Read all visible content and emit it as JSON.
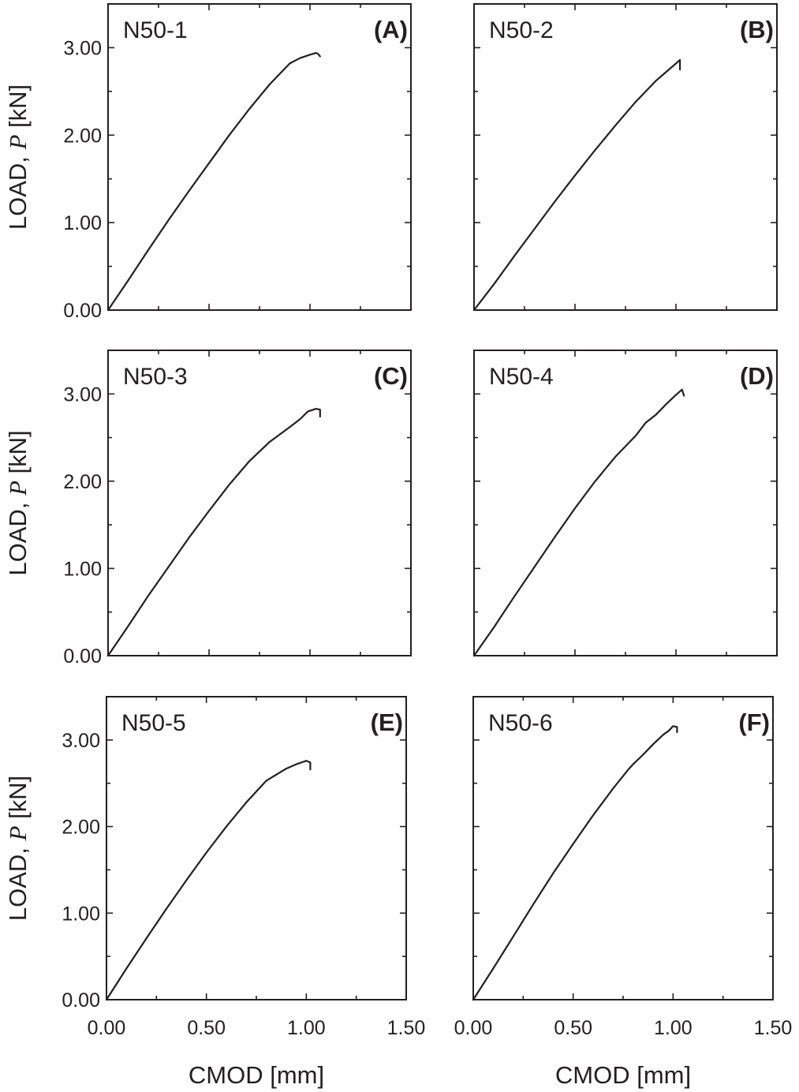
{
  "chart_data": [
    {
      "type": "line",
      "panel_name": "N50-1",
      "panel_letter": "(A)",
      "xlabel": "",
      "ylabel_parts": [
        "LOAD, ",
        "P",
        " [kN]"
      ],
      "xlim": [
        0,
        1.5
      ],
      "ylim": [
        0,
        3.5
      ],
      "yticks": [
        "0.00",
        "1.00",
        "2.00",
        "3.00"
      ],
      "xticks": [],
      "series": [
        {
          "x": [
            0,
            0.1,
            0.2,
            0.3,
            0.4,
            0.5,
            0.6,
            0.7,
            0.8,
            0.9,
            0.95,
            1.0,
            1.03,
            1.04,
            1.05
          ],
          "y": [
            0,
            0.34,
            0.69,
            1.03,
            1.36,
            1.68,
            2.0,
            2.3,
            2.58,
            2.82,
            2.88,
            2.92,
            2.94,
            2.93,
            2.9
          ]
        }
      ]
    },
    {
      "type": "line",
      "panel_name": "N50-2",
      "panel_letter": "(B)",
      "xlabel": "",
      "ylabel_parts": [],
      "xlim": [
        0,
        1.5
      ],
      "ylim": [
        0,
        3.5
      ],
      "yticks": [],
      "xticks": [],
      "series": [
        {
          "x": [
            0,
            0.1,
            0.2,
            0.3,
            0.4,
            0.5,
            0.6,
            0.7,
            0.8,
            0.9,
            0.95,
            1.0,
            1.02,
            1.02
          ],
          "y": [
            0,
            0.3,
            0.62,
            0.93,
            1.24,
            1.54,
            1.83,
            2.11,
            2.38,
            2.62,
            2.72,
            2.82,
            2.86,
            2.75
          ]
        }
      ]
    },
    {
      "type": "line",
      "panel_name": "N50-3",
      "panel_letter": "(C)",
      "xlabel": "",
      "ylabel_parts": [
        "LOAD, ",
        "P",
        " [kN]"
      ],
      "xlim": [
        0,
        1.5
      ],
      "ylim": [
        0,
        3.5
      ],
      "yticks": [
        "0.00",
        "1.00",
        "2.00",
        "3.00"
      ],
      "xticks": [],
      "series": [
        {
          "x": [
            0,
            0.1,
            0.2,
            0.3,
            0.4,
            0.5,
            0.6,
            0.7,
            0.8,
            0.9,
            0.95,
            0.99,
            1.03,
            1.05,
            1.05
          ],
          "y": [
            0,
            0.34,
            0.69,
            1.02,
            1.35,
            1.66,
            1.96,
            2.23,
            2.45,
            2.62,
            2.71,
            2.8,
            2.83,
            2.82,
            2.74
          ]
        }
      ]
    },
    {
      "type": "line",
      "panel_name": "N50-4",
      "panel_letter": "(D)",
      "xlabel": "",
      "ylabel_parts": [],
      "xlim": [
        0,
        1.5
      ],
      "ylim": [
        0,
        3.5
      ],
      "yticks": [],
      "xticks": [],
      "series": [
        {
          "x": [
            0,
            0.1,
            0.2,
            0.3,
            0.4,
            0.5,
            0.6,
            0.7,
            0.8,
            0.85,
            0.9,
            0.95,
            1.0,
            1.03,
            1.04
          ],
          "y": [
            0,
            0.33,
            0.68,
            1.02,
            1.36,
            1.69,
            2.0,
            2.28,
            2.52,
            2.67,
            2.76,
            2.88,
            2.99,
            3.05,
            2.98
          ]
        }
      ]
    },
    {
      "type": "line",
      "panel_name": "N50-5",
      "panel_letter": "(E)",
      "xlabel": "CMOD [mm]",
      "ylabel_parts": [
        "LOAD, ",
        "P",
        " [kN]"
      ],
      "xlim": [
        0,
        1.5
      ],
      "ylim": [
        0,
        3.5
      ],
      "yticks": [
        "0.00",
        "1.00",
        "2.00",
        "3.00"
      ],
      "xticks": [
        "0.00",
        "0.50",
        "1.00",
        "1.50"
      ],
      "series": [
        {
          "x": [
            0,
            0.1,
            0.2,
            0.3,
            0.4,
            0.5,
            0.6,
            0.7,
            0.8,
            0.9,
            0.95,
            1.0,
            1.02,
            1.02
          ],
          "y": [
            0,
            0.36,
            0.71,
            1.05,
            1.38,
            1.7,
            2.0,
            2.28,
            2.53,
            2.67,
            2.72,
            2.76,
            2.74,
            2.66
          ]
        }
      ]
    },
    {
      "type": "line",
      "panel_name": "N50-6",
      "panel_letter": "(F)",
      "xlabel": "CMOD [mm]",
      "ylabel_parts": [],
      "xlim": [
        0,
        1.5
      ],
      "ylim": [
        0,
        3.5
      ],
      "yticks": [],
      "xticks": [
        "0.00",
        "0.50",
        "1.00",
        "1.50"
      ],
      "series": [
        {
          "x": [
            0,
            0.1,
            0.2,
            0.3,
            0.4,
            0.5,
            0.6,
            0.7,
            0.78,
            0.8,
            0.85,
            0.9,
            0.95,
            0.98,
            1.0,
            1.02,
            1.02
          ],
          "y": [
            0,
            0.36,
            0.73,
            1.1,
            1.46,
            1.8,
            2.13,
            2.44,
            2.67,
            2.72,
            2.83,
            2.95,
            3.06,
            3.11,
            3.16,
            3.15,
            3.09
          ]
        }
      ]
    }
  ]
}
